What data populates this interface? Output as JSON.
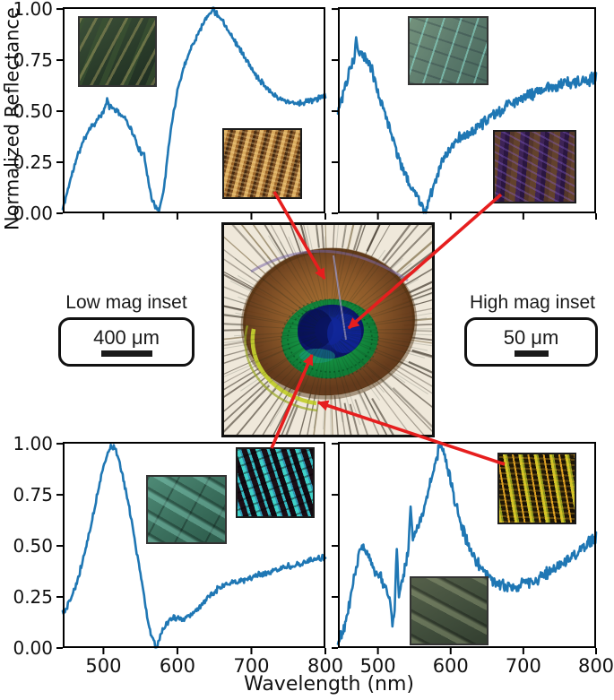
{
  "figure": {
    "ylabel": "Normalized Reflectance",
    "xlabel": "Wavelength (nm)",
    "curve_color": "#1f77b4",
    "arrow_color": "#e61e1e",
    "background": "#ffffff"
  },
  "legends": {
    "low_mag": {
      "title": "Low mag inset",
      "scale": "400 μm"
    },
    "high_mag": {
      "title": "High mag inset",
      "scale": "50 μm"
    }
  },
  "photo": {
    "subject": "peacock feather eyespot macro photograph"
  },
  "chart_data": [
    {
      "id": "panel-top-left",
      "type": "line",
      "arrow_target": "brown ring of eyespot",
      "insets": {
        "low_mag": "dark green barbs micrograph",
        "high_mag": "golden-brown barbules micrograph"
      },
      "xlim": [
        445,
        800
      ],
      "ylim": [
        0,
        1.01
      ],
      "xticks": [
        500,
        600,
        700,
        800
      ],
      "xtick_labels": [
        "500",
        "600",
        "700",
        "800"
      ],
      "show_xtick_labels": false,
      "yticks": [
        0,
        0.25,
        0.5,
        0.75,
        1
      ],
      "ytick_labels": [
        "0.00",
        "0.25",
        "0.50",
        "0.75",
        "1.00"
      ],
      "show_ytick_labels": true,
      "noise": 0.012,
      "spikes": [
        [
          505,
          0.04
        ],
        [
          648,
          0.015
        ]
      ],
      "points": [
        [
          445,
          0.02
        ],
        [
          450,
          0.09
        ],
        [
          455,
          0.16
        ],
        [
          460,
          0.22
        ],
        [
          465,
          0.28
        ],
        [
          470,
          0.33
        ],
        [
          475,
          0.37
        ],
        [
          480,
          0.41
        ],
        [
          485,
          0.43
        ],
        [
          490,
          0.45
        ],
        [
          495,
          0.47
        ],
        [
          500,
          0.5
        ],
        [
          505,
          0.52
        ],
        [
          510,
          0.52
        ],
        [
          515,
          0.51
        ],
        [
          520,
          0.49
        ],
        [
          525,
          0.48
        ],
        [
          530,
          0.46
        ],
        [
          535,
          0.43
        ],
        [
          540,
          0.39
        ],
        [
          545,
          0.34
        ],
        [
          550,
          0.3
        ],
        [
          555,
          0.28
        ],
        [
          560,
          0.18
        ],
        [
          565,
          0.08
        ],
        [
          570,
          0.03
        ],
        [
          575,
          0.02
        ],
        [
          580,
          0.08
        ],
        [
          585,
          0.22
        ],
        [
          590,
          0.38
        ],
        [
          595,
          0.5
        ],
        [
          600,
          0.6
        ],
        [
          605,
          0.67
        ],
        [
          610,
          0.73
        ],
        [
          615,
          0.78
        ],
        [
          620,
          0.82
        ],
        [
          625,
          0.86
        ],
        [
          630,
          0.9
        ],
        [
          635,
          0.93
        ],
        [
          640,
          0.96
        ],
        [
          645,
          0.99
        ],
        [
          650,
          0.99
        ],
        [
          655,
          0.97
        ],
        [
          660,
          0.95
        ],
        [
          665,
          0.92
        ],
        [
          670,
          0.89
        ],
        [
          675,
          0.86
        ],
        [
          680,
          0.83
        ],
        [
          685,
          0.8
        ],
        [
          690,
          0.77
        ],
        [
          695,
          0.74
        ],
        [
          700,
          0.71
        ],
        [
          705,
          0.68
        ],
        [
          710,
          0.66
        ],
        [
          715,
          0.64
        ],
        [
          720,
          0.62
        ],
        [
          725,
          0.6
        ],
        [
          730,
          0.58
        ],
        [
          735,
          0.57
        ],
        [
          740,
          0.56
        ],
        [
          745,
          0.55
        ],
        [
          750,
          0.55
        ],
        [
          755,
          0.54
        ],
        [
          760,
          0.54
        ],
        [
          765,
          0.54
        ],
        [
          770,
          0.54
        ],
        [
          775,
          0.55
        ],
        [
          780,
          0.55
        ],
        [
          785,
          0.56
        ],
        [
          790,
          0.56
        ],
        [
          795,
          0.57
        ],
        [
          800,
          0.58
        ]
      ]
    },
    {
      "id": "panel-top-right",
      "type": "line",
      "arrow_target": "blue center of eyespot",
      "insets": {
        "low_mag": "teal barbs with cyan hooks micrograph",
        "high_mag": "purple-brown barbules micrograph"
      },
      "xlim": [
        445,
        800
      ],
      "ylim": [
        0,
        1.01
      ],
      "xticks": [
        500,
        600,
        700,
        800
      ],
      "xtick_labels": [
        "500",
        "600",
        "700",
        "800"
      ],
      "show_xtick_labels": false,
      "yticks": [
        0,
        0.25,
        0.5,
        0.75,
        1
      ],
      "ytick_labels": [
        "0.00",
        "0.25",
        "0.50",
        "0.75",
        "1.00"
      ],
      "show_ytick_labels": false,
      "noise": 0.024,
      "spikes": [
        [
          470,
          0.08
        ],
        [
          563,
          -0.05
        ],
        [
          566,
          -0.04
        ]
      ],
      "points": [
        [
          445,
          0.5
        ],
        [
          450,
          0.56
        ],
        [
          455,
          0.62
        ],
        [
          460,
          0.68
        ],
        [
          465,
          0.73
        ],
        [
          470,
          0.77
        ],
        [
          475,
          0.79
        ],
        [
          480,
          0.78
        ],
        [
          485,
          0.75
        ],
        [
          490,
          0.72
        ],
        [
          495,
          0.66
        ],
        [
          500,
          0.6
        ],
        [
          505,
          0.55
        ],
        [
          510,
          0.49
        ],
        [
          515,
          0.43
        ],
        [
          520,
          0.37
        ],
        [
          525,
          0.31
        ],
        [
          530,
          0.26
        ],
        [
          535,
          0.21
        ],
        [
          540,
          0.17
        ],
        [
          545,
          0.13
        ],
        [
          550,
          0.1
        ],
        [
          555,
          0.07
        ],
        [
          560,
          0.05
        ],
        [
          565,
          0.04
        ],
        [
          570,
          0.07
        ],
        [
          575,
          0.12
        ],
        [
          580,
          0.17
        ],
        [
          585,
          0.23
        ],
        [
          590,
          0.27
        ],
        [
          595,
          0.3
        ],
        [
          600,
          0.33
        ],
        [
          605,
          0.34
        ],
        [
          610,
          0.36
        ],
        [
          615,
          0.37
        ],
        [
          620,
          0.38
        ],
        [
          625,
          0.39
        ],
        [
          630,
          0.4
        ],
        [
          635,
          0.42
        ],
        [
          640,
          0.43
        ],
        [
          645,
          0.44
        ],
        [
          650,
          0.45
        ],
        [
          655,
          0.47
        ],
        [
          660,
          0.48
        ],
        [
          665,
          0.5
        ],
        [
          670,
          0.51
        ],
        [
          675,
          0.52
        ],
        [
          680,
          0.53
        ],
        [
          685,
          0.54
        ],
        [
          690,
          0.55
        ],
        [
          695,
          0.56
        ],
        [
          700,
          0.57
        ],
        [
          705,
          0.58
        ],
        [
          710,
          0.58
        ],
        [
          715,
          0.59
        ],
        [
          720,
          0.6
        ],
        [
          725,
          0.6
        ],
        [
          730,
          0.61
        ],
        [
          735,
          0.62
        ],
        [
          740,
          0.62
        ],
        [
          745,
          0.62
        ],
        [
          750,
          0.63
        ],
        [
          755,
          0.64
        ],
        [
          760,
          0.64
        ],
        [
          765,
          0.64
        ],
        [
          770,
          0.65
        ],
        [
          775,
          0.64
        ],
        [
          780,
          0.64
        ],
        [
          785,
          0.65
        ],
        [
          790,
          0.65
        ],
        [
          795,
          0.66
        ],
        [
          800,
          0.66
        ]
      ]
    },
    {
      "id": "panel-bottom-left",
      "type": "line",
      "arrow_target": "green ring of eyespot",
      "insets": {
        "low_mag": "teal-green banded barbules micrograph",
        "high_mag": "bright cyan rod barbules micrograph"
      },
      "xlim": [
        445,
        800
      ],
      "ylim": [
        0,
        1.01
      ],
      "xticks": [
        500,
        600,
        700,
        800
      ],
      "xtick_labels": [
        "500",
        "600",
        "700",
        "800"
      ],
      "show_xtick_labels": true,
      "yticks": [
        0,
        0.25,
        0.5,
        0.75,
        1
      ],
      "ytick_labels": [
        "0.00",
        "0.25",
        "0.50",
        "0.75",
        "1.00"
      ],
      "show_ytick_labels": true,
      "noise": 0.012,
      "spikes": [
        [
          572,
          -0.03
        ]
      ],
      "points": [
        [
          445,
          0.18
        ],
        [
          450,
          0.19
        ],
        [
          455,
          0.24
        ],
        [
          460,
          0.28
        ],
        [
          465,
          0.33
        ],
        [
          470,
          0.4
        ],
        [
          475,
          0.47
        ],
        [
          480,
          0.55
        ],
        [
          485,
          0.63
        ],
        [
          490,
          0.72
        ],
        [
          495,
          0.81
        ],
        [
          500,
          0.89
        ],
        [
          505,
          0.95
        ],
        [
          510,
          0.99
        ],
        [
          515,
          0.98
        ],
        [
          520,
          0.93
        ],
        [
          525,
          0.86
        ],
        [
          530,
          0.77
        ],
        [
          535,
          0.68
        ],
        [
          540,
          0.58
        ],
        [
          545,
          0.47
        ],
        [
          550,
          0.36
        ],
        [
          555,
          0.25
        ],
        [
          560,
          0.14
        ],
        [
          565,
          0.06
        ],
        [
          570,
          0.02
        ],
        [
          575,
          0.04
        ],
        [
          580,
          0.09
        ],
        [
          585,
          0.12
        ],
        [
          590,
          0.14
        ],
        [
          595,
          0.15
        ],
        [
          600,
          0.15
        ],
        [
          605,
          0.14
        ],
        [
          610,
          0.14
        ],
        [
          615,
          0.15
        ],
        [
          620,
          0.16
        ],
        [
          625,
          0.18
        ],
        [
          630,
          0.2
        ],
        [
          635,
          0.22
        ],
        [
          640,
          0.24
        ],
        [
          645,
          0.26
        ],
        [
          650,
          0.27
        ],
        [
          655,
          0.29
        ],
        [
          660,
          0.3
        ],
        [
          665,
          0.31
        ],
        [
          670,
          0.31
        ],
        [
          675,
          0.32
        ],
        [
          680,
          0.32
        ],
        [
          685,
          0.33
        ],
        [
          690,
          0.33
        ],
        [
          695,
          0.34
        ],
        [
          700,
          0.34
        ],
        [
          705,
          0.35
        ],
        [
          710,
          0.36
        ],
        [
          715,
          0.36
        ],
        [
          720,
          0.37
        ],
        [
          725,
          0.37
        ],
        [
          730,
          0.38
        ],
        [
          735,
          0.38
        ],
        [
          740,
          0.39
        ],
        [
          745,
          0.39
        ],
        [
          750,
          0.4
        ],
        [
          755,
          0.4
        ],
        [
          760,
          0.41
        ],
        [
          765,
          0.41
        ],
        [
          770,
          0.42
        ],
        [
          775,
          0.42
        ],
        [
          780,
          0.43
        ],
        [
          785,
          0.43
        ],
        [
          790,
          0.44
        ],
        [
          795,
          0.44
        ],
        [
          800,
          0.44
        ]
      ]
    },
    {
      "id": "panel-bottom-right",
      "type": "line",
      "arrow_target": "outer yellow-green ring of eyespot",
      "insets": {
        "low_mag": "dark olive banded barbules micrograph",
        "high_mag": "yellow-green beaded barbules micrograph"
      },
      "xlim": [
        445,
        800
      ],
      "ylim": [
        0,
        1.01
      ],
      "xticks": [
        500,
        600,
        700,
        800
      ],
      "xtick_labels": [
        "500",
        "600",
        "700",
        "800"
      ],
      "show_xtick_labels": true,
      "yticks": [
        0,
        0.25,
        0.5,
        0.75,
        1
      ],
      "ytick_labels": [
        "0.00",
        "0.25",
        "0.50",
        "0.75",
        "1.00"
      ],
      "show_ytick_labels": false,
      "noise": 0.024,
      "spikes": [
        [
          526,
          0.28
        ],
        [
          545,
          0.18
        ],
        [
          520,
          -0.08
        ]
      ],
      "points": [
        [
          445,
          0.03
        ],
        [
          450,
          0.06
        ],
        [
          455,
          0.12
        ],
        [
          460,
          0.2
        ],
        [
          465,
          0.3
        ],
        [
          470,
          0.4
        ],
        [
          475,
          0.48
        ],
        [
          480,
          0.5
        ],
        [
          485,
          0.47
        ],
        [
          490,
          0.43
        ],
        [
          495,
          0.38
        ],
        [
          500,
          0.36
        ],
        [
          505,
          0.34
        ],
        [
          510,
          0.3
        ],
        [
          515,
          0.24
        ],
        [
          520,
          0.19
        ],
        [
          525,
          0.2
        ],
        [
          530,
          0.26
        ],
        [
          535,
          0.36
        ],
        [
          540,
          0.44
        ],
        [
          545,
          0.52
        ],
        [
          550,
          0.56
        ],
        [
          555,
          0.6
        ],
        [
          560,
          0.64
        ],
        [
          565,
          0.7
        ],
        [
          570,
          0.78
        ],
        [
          575,
          0.86
        ],
        [
          580,
          0.93
        ],
        [
          585,
          0.99
        ],
        [
          590,
          0.97
        ],
        [
          595,
          0.9
        ],
        [
          600,
          0.82
        ],
        [
          605,
          0.74
        ],
        [
          610,
          0.66
        ],
        [
          615,
          0.6
        ],
        [
          620,
          0.55
        ],
        [
          625,
          0.5
        ],
        [
          630,
          0.46
        ],
        [
          635,
          0.43
        ],
        [
          640,
          0.4
        ],
        [
          645,
          0.38
        ],
        [
          650,
          0.36
        ],
        [
          655,
          0.34
        ],
        [
          660,
          0.33
        ],
        [
          665,
          0.32
        ],
        [
          670,
          0.31
        ],
        [
          675,
          0.3
        ],
        [
          680,
          0.3
        ],
        [
          685,
          0.3
        ],
        [
          690,
          0.31
        ],
        [
          695,
          0.31
        ],
        [
          700,
          0.32
        ],
        [
          705,
          0.32
        ],
        [
          710,
          0.33
        ],
        [
          715,
          0.33
        ],
        [
          720,
          0.34
        ],
        [
          725,
          0.35
        ],
        [
          730,
          0.36
        ],
        [
          735,
          0.37
        ],
        [
          740,
          0.38
        ],
        [
          745,
          0.39
        ],
        [
          750,
          0.4
        ],
        [
          755,
          0.41
        ],
        [
          760,
          0.43
        ],
        [
          765,
          0.44
        ],
        [
          770,
          0.46
        ],
        [
          775,
          0.47
        ],
        [
          780,
          0.49
        ],
        [
          785,
          0.5
        ],
        [
          790,
          0.52
        ],
        [
          795,
          0.53
        ],
        [
          800,
          0.55
        ]
      ]
    }
  ]
}
